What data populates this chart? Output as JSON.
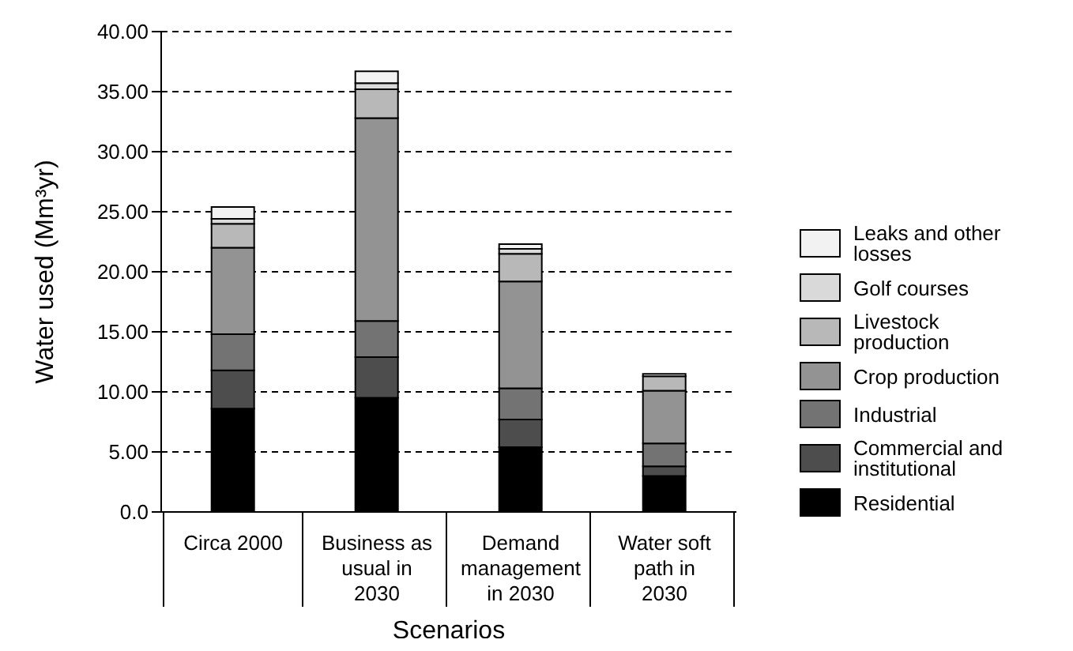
{
  "chart_data": {
    "type": "bar",
    "stacked": true,
    "xlabel": "Scenarios",
    "ylabel": "Water used (Mm³yr)",
    "categories": [
      "Circa 2000",
      "Business as usual in 2030",
      "Demand management in 2030",
      "Water soft path in 2030"
    ],
    "series": [
      {
        "name": "Residential",
        "color": "#000000",
        "values": [
          8.6,
          9.5,
          5.4,
          3.0
        ]
      },
      {
        "name": "Commercial and institutional",
        "color": "#4d4d4d",
        "values": [
          3.2,
          3.4,
          2.3,
          0.8
        ]
      },
      {
        "name": "Industrial",
        "color": "#737373",
        "values": [
          3.0,
          3.0,
          2.6,
          1.9
        ]
      },
      {
        "name": "Crop production",
        "color": "#939393",
        "values": [
          7.2,
          16.9,
          8.9,
          4.4
        ]
      },
      {
        "name": "Livestock production",
        "color": "#b8b8b8",
        "values": [
          2.0,
          2.4,
          2.3,
          1.2
        ]
      },
      {
        "name": "Golf courses",
        "color": "#d9d9d9",
        "values": [
          0.4,
          0.5,
          0.4,
          null
        ]
      },
      {
        "name": "Leaks and other losses",
        "color": "#f2f2f2",
        "values": [
          1.0,
          1.0,
          0.4,
          0.2
        ]
      }
    ],
    "ylim": [
      0,
      40
    ],
    "yticks": [
      {
        "value": 0,
        "label": "0.0"
      },
      {
        "value": 5,
        "label": "5.00"
      },
      {
        "value": 10,
        "label": "10.00"
      },
      {
        "value": 15,
        "label": "15.00"
      },
      {
        "value": 20,
        "label": "20.00"
      },
      {
        "value": 25,
        "label": "25.00"
      },
      {
        "value": 30,
        "label": "30.00"
      },
      {
        "value": 35,
        "label": "35.00"
      },
      {
        "value": 40,
        "label": "40.00"
      }
    ],
    "grid": "y",
    "legend": "right"
  }
}
